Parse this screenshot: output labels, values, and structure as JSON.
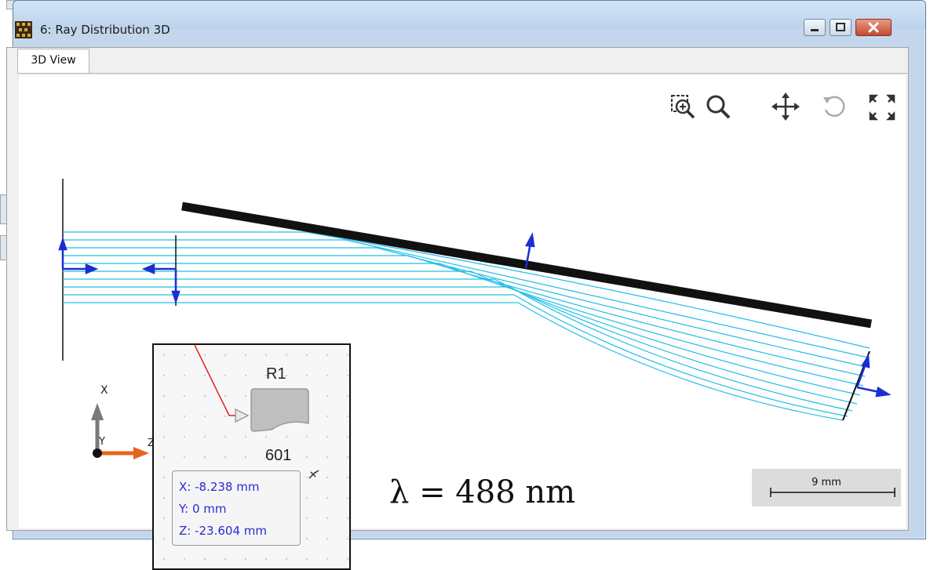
{
  "window": {
    "title": "6: Ray Distribution 3D",
    "tab_label": "3D View"
  },
  "toolbar": {
    "icons": [
      "zoom-region-icon",
      "zoom-icon",
      "pan-icon",
      "rotate-icon",
      "fit-view-icon"
    ]
  },
  "axes_triad": {
    "x_label": "X",
    "y_label": "Y",
    "z_label": "Z"
  },
  "scale_bar": {
    "label": "9 mm"
  },
  "annotation": {
    "wavelength": "λ = 488 nm"
  },
  "inset": {
    "component_label": "R1",
    "component_id": "601",
    "coord_x": "X: -8.238 mm",
    "coord_y": "Y: 0 mm",
    "coord_z": "Z: -23.604 mm"
  },
  "colors": {
    "rays": "#22bde8",
    "mirror": "#111111",
    "normal_arrows": "#1a2fd0",
    "x_axis_arrow": "#7a7a7a",
    "z_axis_arrow": "#e8641c",
    "inset_link": "#e02020",
    "coord_text": "#2a2ad6"
  }
}
